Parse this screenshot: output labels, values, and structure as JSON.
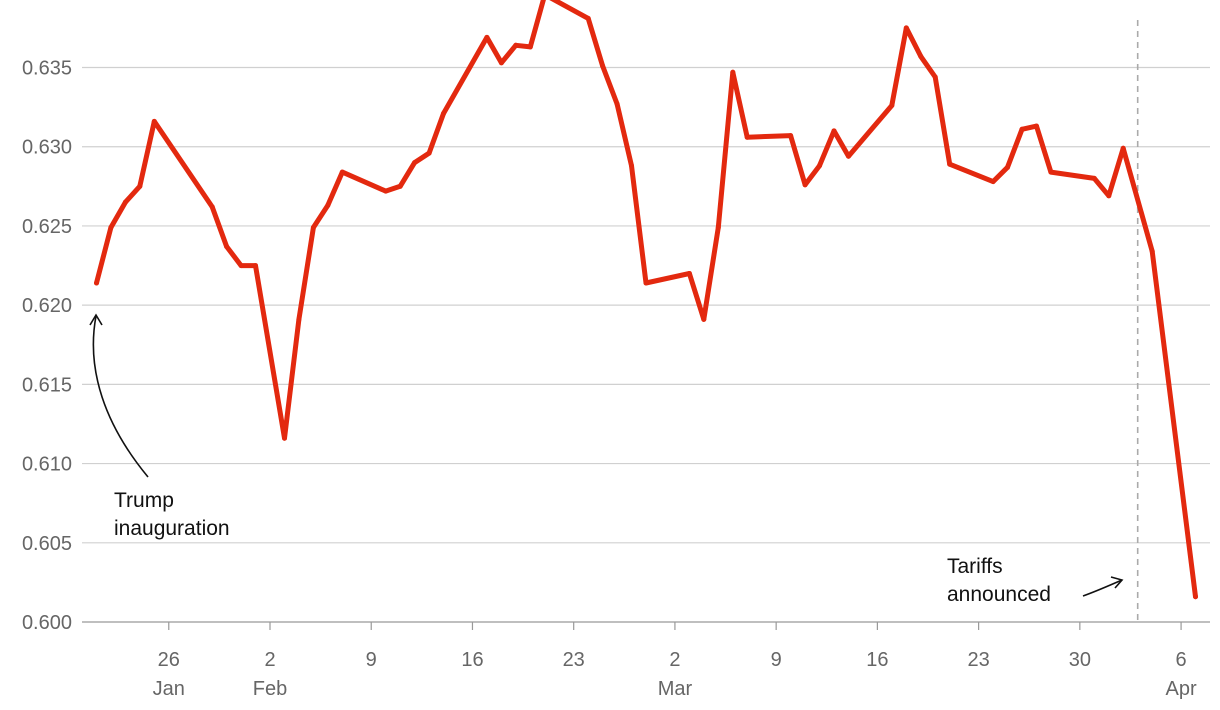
{
  "chart_data": {
    "type": "line",
    "title": "",
    "xlabel": "",
    "ylabel": "",
    "ylim": [
      0.6,
      0.638
    ],
    "xlim": [
      "2025-01-20",
      "2025-04-08"
    ],
    "grid": true,
    "y_ticks": [
      "0.600",
      "0.605",
      "0.610",
      "0.615",
      "0.620",
      "0.625",
      "0.630",
      "0.635"
    ],
    "x_ticks": [
      {
        "date": "2025-01-26",
        "day": "26",
        "month": "Jan"
      },
      {
        "date": "2025-02-02",
        "day": "2",
        "month": "Feb"
      },
      {
        "date": "2025-02-09",
        "day": "9",
        "month": ""
      },
      {
        "date": "2025-02-16",
        "day": "16",
        "month": ""
      },
      {
        "date": "2025-02-23",
        "day": "23",
        "month": ""
      },
      {
        "date": "2025-03-02",
        "day": "2",
        "month": "Mar"
      },
      {
        "date": "2025-03-09",
        "day": "9",
        "month": ""
      },
      {
        "date": "2025-03-16",
        "day": "16",
        "month": ""
      },
      {
        "date": "2025-03-23",
        "day": "23",
        "month": ""
      },
      {
        "date": "2025-03-30",
        "day": "30",
        "month": ""
      },
      {
        "date": "2025-04-06",
        "day": "6",
        "month": "Apr"
      }
    ],
    "series": [
      {
        "color": "#e3290f",
        "points": [
          [
            "2025-01-21",
            0.6214
          ],
          [
            "2025-01-22",
            0.6249
          ],
          [
            "2025-01-23",
            0.6265
          ],
          [
            "2025-01-24",
            0.6275
          ],
          [
            "2025-01-25",
            0.6316
          ],
          [
            "2025-01-29",
            0.6262
          ],
          [
            "2025-01-30",
            0.6237
          ],
          [
            "2025-01-31",
            0.6225
          ],
          [
            "2025-02-01",
            0.6225
          ],
          [
            "2025-02-03",
            0.6116
          ],
          [
            "2025-02-04",
            0.6191
          ],
          [
            "2025-02-05",
            0.6249
          ],
          [
            "2025-02-06",
            0.6263
          ],
          [
            "2025-02-07",
            0.6284
          ],
          [
            "2025-02-10",
            0.6272
          ],
          [
            "2025-02-11",
            0.6275
          ],
          [
            "2025-02-12",
            0.629
          ],
          [
            "2025-02-13",
            0.6296
          ],
          [
            "2025-02-14",
            0.6321
          ],
          [
            "2025-02-17",
            0.6369
          ],
          [
            "2025-02-18",
            0.6353
          ],
          [
            "2025-02-19",
            0.6364
          ],
          [
            "2025-02-20",
            0.6363
          ],
          [
            "2025-02-21",
            0.6396
          ],
          [
            "2025-02-24",
            0.6381
          ],
          [
            "2025-02-25",
            0.6351
          ],
          [
            "2025-02-26",
            0.6327
          ],
          [
            "2025-02-27",
            0.6288
          ],
          [
            "2025-02-28",
            0.6214
          ],
          [
            "2025-03-03",
            0.622
          ],
          [
            "2025-03-04",
            0.6191
          ],
          [
            "2025-03-05",
            0.6249
          ],
          [
            "2025-03-06",
            0.6347
          ],
          [
            "2025-03-07",
            0.6306
          ],
          [
            "2025-03-10",
            0.6307
          ],
          [
            "2025-03-11",
            0.6276
          ],
          [
            "2025-03-12",
            0.6288
          ],
          [
            "2025-03-13",
            0.631
          ],
          [
            "2025-03-14",
            0.6294
          ],
          [
            "2025-03-17",
            0.6326
          ],
          [
            "2025-03-18",
            0.6375
          ],
          [
            "2025-03-19",
            0.6357
          ],
          [
            "2025-03-20",
            0.6344
          ],
          [
            "2025-03-21",
            0.6289
          ],
          [
            "2025-03-24",
            0.6278
          ],
          [
            "2025-03-25",
            0.6287
          ],
          [
            "2025-03-26",
            0.6311
          ],
          [
            "2025-03-27",
            0.6313
          ],
          [
            "2025-03-28",
            0.6284
          ],
          [
            "2025-03-31",
            0.628
          ],
          [
            "2025-04-01",
            0.6269
          ],
          [
            "2025-04-02",
            0.6299
          ],
          [
            "2025-04-04",
            0.6234
          ],
          [
            "2025-04-07",
            0.6016
          ]
        ]
      }
    ],
    "annotations": [
      {
        "id": "inauguration",
        "lines": [
          "Trump",
          "inauguration"
        ],
        "date": "2025-01-21",
        "value": 0.6214
      },
      {
        "id": "tariffs",
        "lines": [
          "Tariffs",
          "announced"
        ],
        "date": "2025-04-03",
        "value": 0.6016
      }
    ],
    "vline": {
      "date": "2025-04-03",
      "style": "dashed",
      "color": "#aaaaaa"
    }
  }
}
